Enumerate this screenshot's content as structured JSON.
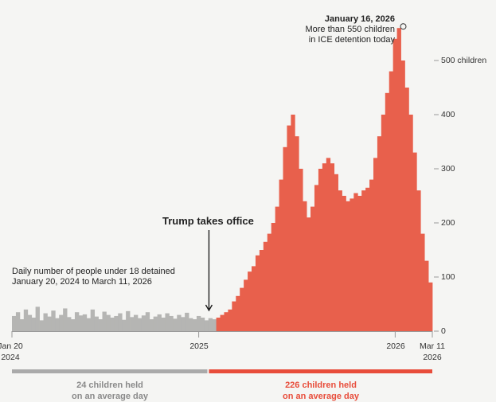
{
  "chart_data": {
    "type": "bar",
    "description_label": [
      "Daily number of people under 18 detained",
      "January 20, 2024 to March 11, 2026"
    ],
    "x_start": "2024-01-20",
    "x_end": "2026-03-11",
    "x_step": "weekly (approx.)",
    "ylim": [
      0,
      570
    ],
    "y_ticks": [
      {
        "value": 0,
        "label": "0"
      },
      {
        "value": 100,
        "label": "100"
      },
      {
        "value": 200,
        "label": "200"
      },
      {
        "value": 300,
        "label": "300"
      },
      {
        "value": 400,
        "label": "400"
      },
      {
        "value": 500,
        "label": "500 children"
      }
    ],
    "x_ticks": [
      {
        "date": "2024-01-20",
        "label": [
          "Jan 20",
          "2024"
        ]
      },
      {
        "date": "2025-01-01",
        "label": [
          "2025"
        ]
      },
      {
        "date": "2026-01-01",
        "label": [
          "2026"
        ]
      },
      {
        "date": "2026-03-11",
        "label": [
          "Mar 11",
          "2026"
        ]
      }
    ],
    "series": [
      {
        "period": "before",
        "color": "#b5b5b3",
        "values": [
          28,
          35,
          22,
          40,
          30,
          25,
          45,
          20,
          33,
          27,
          38,
          24,
          30,
          42,
          26,
          22,
          35,
          29,
          31,
          24,
          40,
          27,
          22,
          36,
          30,
          25,
          28,
          33,
          21,
          37,
          26,
          30,
          24,
          29,
          35,
          22,
          27,
          31,
          25,
          33,
          28,
          23,
          30,
          26,
          34,
          24,
          22,
          28,
          25,
          20,
          24,
          22
        ]
      },
      {
        "period": "after",
        "color": "#e8604c",
        "values": [
          25,
          30,
          35,
          40,
          55,
          65,
          80,
          95,
          110,
          120,
          140,
          150,
          165,
          180,
          200,
          230,
          280,
          340,
          380,
          400,
          360,
          300,
          240,
          210,
          230,
          270,
          300,
          310,
          320,
          310,
          290,
          260,
          250,
          240,
          245,
          255,
          250,
          260,
          265,
          280,
          320,
          360,
          400,
          440,
          480,
          540,
          560,
          500,
          450,
          400,
          330,
          260,
          180,
          130,
          90
        ]
      }
    ],
    "grid": false,
    "annotations": {
      "peak": {
        "date": "2026-01-16",
        "value": 560,
        "title": "January 16, 2026",
        "lines": [
          "More than 550 children",
          "in ICE detention today"
        ]
      },
      "event": {
        "date": "2025-01-20",
        "label": "Trump takes office"
      }
    },
    "averages": [
      {
        "label": [
          "24 children held",
          "on an average day"
        ],
        "value": 24,
        "color": "#aaaaaa",
        "text_color": "#8a8a8a"
      },
      {
        "label": [
          "226 children held",
          "on an average day"
        ],
        "value": 226,
        "color": "#e84d3b",
        "text_color": "#e84d3b"
      }
    ]
  }
}
